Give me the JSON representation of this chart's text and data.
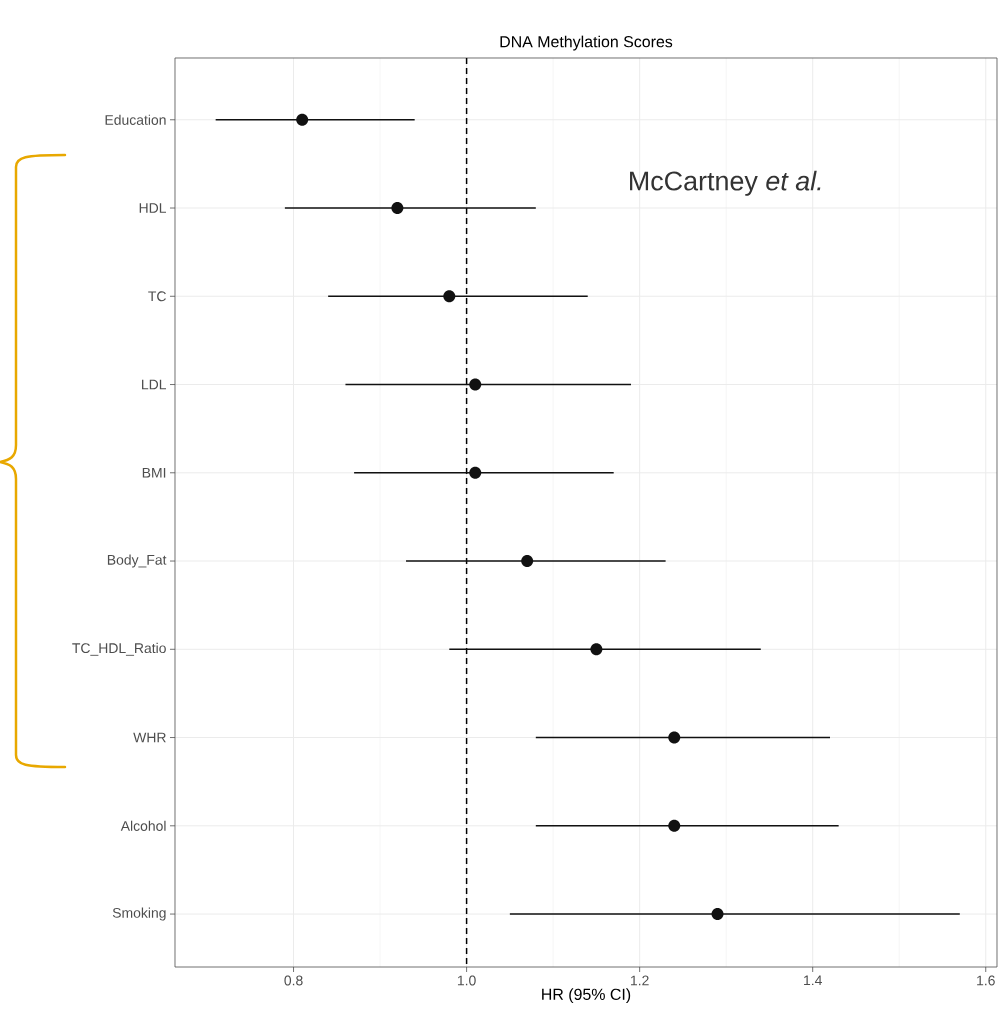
{
  "chart_data": {
    "type": "scatter",
    "orientation": "horizontal",
    "title": "DNA Methylation Scores",
    "xlabel": "HR (95% CI)",
    "categories": [
      "Education",
      "HDL",
      "TC",
      "LDL",
      "BMI",
      "Body_Fat",
      "TC_HDL_Ratio",
      "WHR",
      "Alcohol",
      "Smoking"
    ],
    "values": [
      0.81,
      0.92,
      0.98,
      1.01,
      1.01,
      1.07,
      1.15,
      1.24,
      1.24,
      1.29
    ],
    "errors": [
      [
        0.71,
        0.94
      ],
      [
        0.79,
        1.08
      ],
      [
        0.84,
        1.14
      ],
      [
        0.86,
        1.19
      ],
      [
        0.87,
        1.17
      ],
      [
        0.93,
        1.23
      ],
      [
        0.98,
        1.34
      ],
      [
        1.08,
        1.42
      ],
      [
        1.08,
        1.43
      ],
      [
        1.05,
        1.57
      ]
    ],
    "color": "#111111",
    "marker": "circle",
    "xlim": [
      0.663,
      1.613
    ],
    "xticks": [
      0.8,
      {
        "value": 1,
        "label": "1.0"
      },
      1.2,
      1.4,
      1.6
    ],
    "ref_lines": [
      {
        "axis": "x",
        "value": 1,
        "line_style": "dashed"
      }
    ],
    "grid": true,
    "annotations": [
      "McCartney *et al.*"
    ]
  }
}
